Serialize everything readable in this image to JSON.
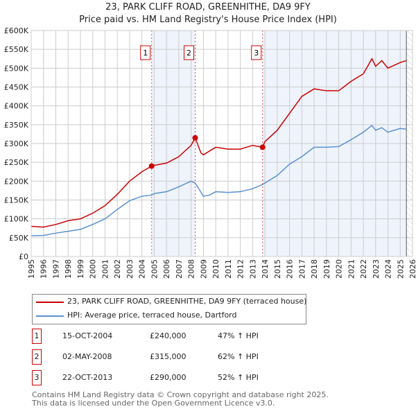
{
  "chart_data": {
    "type": "line",
    "title": "23, PARK CLIFF ROAD, GREENHITHE, DA9 9FY",
    "subtitle": "Price paid vs. HM Land Registry's House Price Index (HPI)",
    "xlim": [
      1995,
      2026
    ],
    "ylim": [
      0,
      600000
    ],
    "x_ticks": [
      "1995",
      "1996",
      "1997",
      "1998",
      "1999",
      "2000",
      "2001",
      "2002",
      "2003",
      "2004",
      "2005",
      "2006",
      "2007",
      "2008",
      "2009",
      "2010",
      "2011",
      "2012",
      "2013",
      "2014",
      "2015",
      "2016",
      "2017",
      "2018",
      "2019",
      "2020",
      "2021",
      "2022",
      "2023",
      "2024",
      "2025",
      "2026"
    ],
    "y_ticks": [
      "£0",
      "£50K",
      "£100K",
      "£150K",
      "£200K",
      "£250K",
      "£300K",
      "£350K",
      "£400K",
      "£450K",
      "£500K",
      "£550K",
      "£600K"
    ],
    "grid": true,
    "series": [
      {
        "name": "23, PARK CLIFF ROAD, GREENHITHE, DA9 9FY (terraced house)",
        "color": "#cc0000",
        "x": [
          1995,
          1996,
          1997,
          1998,
          1999,
          2000,
          2001,
          2002,
          2003,
          2004,
          2004.79,
          2005,
          2006,
          2007,
          2008,
          2008.33,
          2008.8,
          2009,
          2010,
          2011,
          2012,
          2013,
          2013.8,
          2014,
          2015,
          2016,
          2017,
          2018,
          2019,
          2020,
          2021,
          2022,
          2022.7,
          2023,
          2023.5,
          2024,
          2025,
          2025.5
        ],
        "y": [
          80000,
          78000,
          85000,
          95000,
          100000,
          115000,
          135000,
          165000,
          200000,
          225000,
          240000,
          242000,
          248000,
          265000,
          295000,
          315000,
          275000,
          270000,
          290000,
          285000,
          285000,
          295000,
          290000,
          305000,
          335000,
          380000,
          425000,
          445000,
          440000,
          440000,
          465000,
          485000,
          525000,
          505000,
          520000,
          500000,
          515000,
          520000
        ]
      },
      {
        "name": "HPI: Average price, terraced house, Dartford",
        "color": "#5b8fd0",
        "x": [
          1995,
          1996,
          1997,
          1998,
          1999,
          2000,
          2001,
          2002,
          2003,
          2004,
          2004.79,
          2005,
          2006,
          2007,
          2008,
          2008.33,
          2009,
          2009.5,
          2010,
          2011,
          2012,
          2013,
          2013.8,
          2014,
          2015,
          2016,
          2017,
          2018,
          2019,
          2020,
          2021,
          2022,
          2022.7,
          2023,
          2023.5,
          2024,
          2025,
          2025.5
        ],
        "y": [
          55000,
          56000,
          62000,
          67000,
          72000,
          85000,
          100000,
          125000,
          148000,
          160000,
          163000,
          167000,
          172000,
          185000,
          200000,
          195000,
          160000,
          163000,
          172000,
          170000,
          172000,
          180000,
          191000,
          195000,
          215000,
          245000,
          265000,
          290000,
          290000,
          292000,
          310000,
          330000,
          348000,
          335000,
          342000,
          330000,
          340000,
          338000
        ]
      }
    ],
    "sales": [
      {
        "label": "1",
        "x": 2004.79,
        "price": 240000,
        "date": "15-OCT-2004",
        "price_text": "£240,000",
        "hpi_text": "47% ↑ HPI"
      },
      {
        "label": "2",
        "x": 2008.33,
        "price": 315000,
        "date": "02-MAY-2008",
        "price_text": "£315,000",
        "hpi_text": "62% ↑ HPI"
      },
      {
        "label": "3",
        "x": 2013.81,
        "price": 290000,
        "date": "22-OCT-2013",
        "price_text": "£290,000",
        "hpi_text": "52% ↑ HPI"
      }
    ]
  },
  "footer": {
    "line1": "Contains HM Land Registry data © Crown copyright and database right 2025.",
    "line2": "This data is licensed under the Open Government Licence v3.0."
  }
}
